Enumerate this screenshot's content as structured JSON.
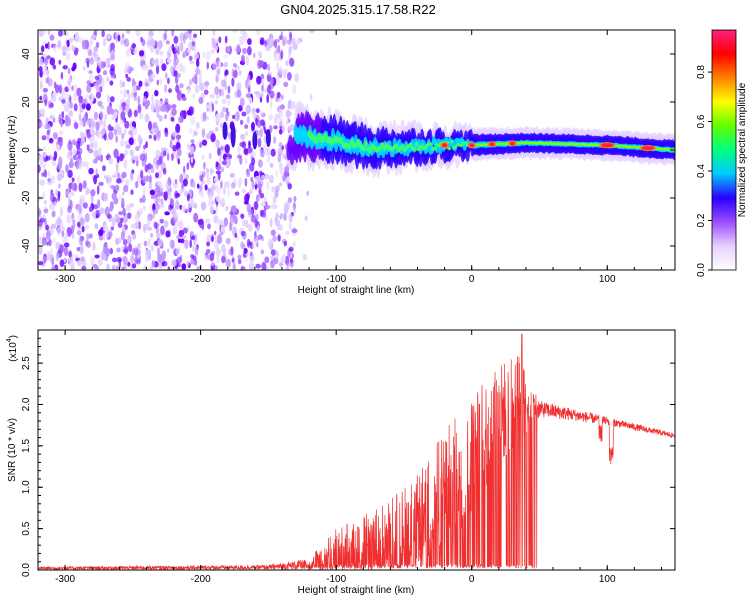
{
  "title": "GN04.2025.315.17.58.R22",
  "chart_data": [
    {
      "type": "heatmap",
      "name": "spectrogram",
      "xlabel": "Height of straight line (km)",
      "ylabel": "Frequency (Hz)",
      "xlim": [
        -320,
        150
      ],
      "ylim": [
        -50,
        50
      ],
      "xticks": [
        "-300",
        "-200",
        "-100",
        "0",
        "100"
      ],
      "yticks": [
        "-40",
        "-20",
        "0",
        "20",
        "40"
      ],
      "xtick_values": [
        -300,
        -200,
        -100,
        0,
        100
      ],
      "ytick_values": [
        -40,
        -20,
        0,
        20,
        40
      ],
      "noise_region_km": [
        -320,
        -130
      ],
      "signal_band": [
        {
          "km": -130,
          "freq": 6,
          "width": 8
        },
        {
          "km": -100,
          "freq": 4,
          "width": 7
        },
        {
          "km": -75,
          "freq": 1,
          "width": 6
        },
        {
          "km": -50,
          "freq": 1,
          "width": 5
        },
        {
          "km": -25,
          "freq": 2,
          "width": 4
        },
        {
          "km": 0,
          "freq": 2,
          "width": 3
        },
        {
          "km": 40,
          "freq": 3,
          "width": 2.5
        },
        {
          "km": 100,
          "freq": 2,
          "width": 2.5
        },
        {
          "km": 150,
          "freq": 0,
          "width": 2.5
        }
      ],
      "hotspots_km": [
        -20,
        0,
        15,
        30,
        100,
        130
      ],
      "colorbar": {
        "label": "Normalized spectral amplitude",
        "ticks": [
          "0.0",
          "0.2",
          "0.4",
          "0.6",
          "0.8"
        ],
        "tick_values": [
          0.0,
          0.2,
          0.4,
          0.6,
          0.8
        ],
        "range": [
          0,
          0.97
        ],
        "colors": [
          "#ffffff",
          "#e8d0ff",
          "#9b4dff",
          "#2a00ff",
          "#00c8ff",
          "#00ff80",
          "#60ff00",
          "#ffff00",
          "#ff8000",
          "#ff0000",
          "#ff2080"
        ]
      }
    },
    {
      "type": "line",
      "name": "snr",
      "xlabel": "Height of straight line (km)",
      "ylabel": "SNR (10 * v/v)",
      "scale_label": "(x10",
      "scale_exp": "4",
      "scale_suffix": ")",
      "xlim": [
        -320,
        150
      ],
      "ylim": [
        0,
        2.9
      ],
      "xticks": [
        "-300",
        "-200",
        "-100",
        "0",
        "100"
      ],
      "yticks": [
        "0.0",
        "0.5",
        "1.0",
        "1.5",
        "2.0",
        "2.5"
      ],
      "xtick_values": [
        -300,
        -200,
        -100,
        0,
        100
      ],
      "ytick_values": [
        0.0,
        0.5,
        1.0,
        1.5,
        2.0,
        2.5
      ],
      "color": "#f03030",
      "envelope": [
        {
          "x": -320,
          "base": 0.02,
          "amp": 0.02
        },
        {
          "x": -150,
          "base": 0.03,
          "amp": 0.03
        },
        {
          "x": -120,
          "base": 0.06,
          "amp": 0.08
        },
        {
          "x": -100,
          "base": 0.2,
          "amp": 0.3
        },
        {
          "x": -70,
          "base": 0.3,
          "amp": 0.45
        },
        {
          "x": -40,
          "base": 0.55,
          "amp": 0.6
        },
        {
          "x": -20,
          "base": 0.9,
          "amp": 0.8
        },
        {
          "x": 0,
          "base": 1.3,
          "amp": 0.8
        },
        {
          "x": 20,
          "base": 1.8,
          "amp": 0.7
        },
        {
          "x": 35,
          "base": 2.0,
          "amp": 0.6
        },
        {
          "x": 50,
          "base": 1.95,
          "amp": 0.1
        },
        {
          "x": 100,
          "base": 1.8,
          "amp": 0.05
        },
        {
          "x": 150,
          "base": 1.62,
          "amp": 0.03
        }
      ],
      "peak": {
        "x": 37,
        "y": 2.85
      },
      "dip": {
        "x": 103,
        "y": 1.25
      }
    }
  ]
}
